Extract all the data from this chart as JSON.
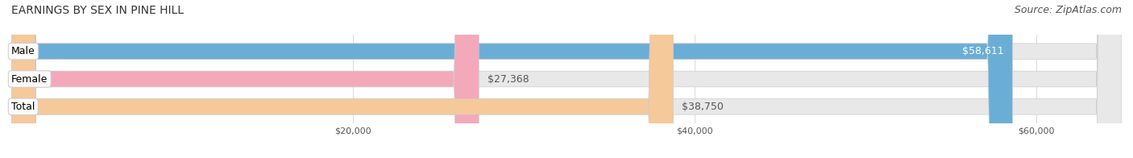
{
  "title": "EARNINGS BY SEX IN PINE HILL",
  "source": "Source: ZipAtlas.com",
  "categories": [
    "Male",
    "Female",
    "Total"
  ],
  "values": [
    58611,
    27368,
    38750
  ],
  "bar_colors": [
    "#6aaed6",
    "#f4a9bb",
    "#f5c99a"
  ],
  "label_texts": [
    "$58,611",
    "$27,368",
    "$38,750"
  ],
  "bar_bg_color": "#f0f0f0",
  "xlim": [
    0,
    65000
  ],
  "xticks": [
    20000,
    40000,
    60000
  ],
  "xtick_labels": [
    "$20,000",
    "$40,000",
    "$60,000"
  ],
  "title_fontsize": 10,
  "source_fontsize": 9,
  "label_fontsize": 9,
  "category_fontsize": 9,
  "bar_height": 0.55,
  "background_color": "#ffffff",
  "bar_edge_color": "#cccccc",
  "grid_color": "#dddddd"
}
